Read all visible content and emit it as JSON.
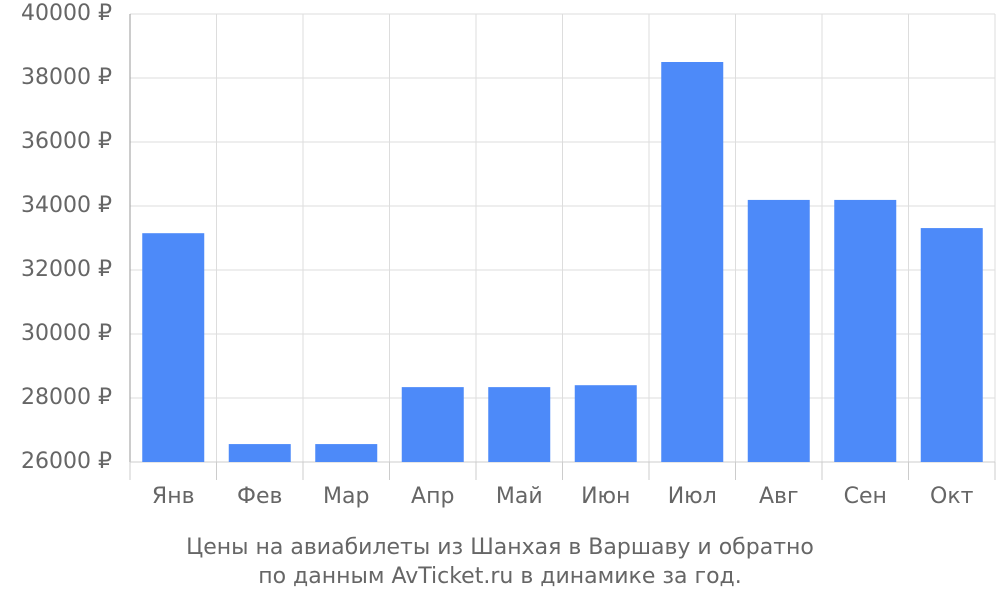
{
  "chart_data": {
    "type": "bar",
    "title": [
      "Цены на авиабилеты из Шанхая в Варшаву и обратно",
      "по данным AvTicket.ru в динамике за год."
    ],
    "categories": [
      "Янв",
      "Фев",
      "Мар",
      "Апр",
      "Май",
      "Июн",
      "Июл",
      "Авг",
      "Сен",
      "Окт"
    ],
    "values": [
      33150,
      26560,
      26560,
      28340,
      28340,
      28400,
      38500,
      34190,
      34190,
      33310
    ],
    "color": "#4d8af9",
    "ylim": [
      26000,
      40000
    ],
    "yticks": [
      {
        "value": 26000,
        "label": "26000 ₽"
      },
      {
        "value": 28000,
        "label": "28000 ₽"
      },
      {
        "value": 30000,
        "label": "30000 ₽"
      },
      {
        "value": 32000,
        "label": "32000 ₽"
      },
      {
        "value": 34000,
        "label": "34000 ₽"
      },
      {
        "value": 36000,
        "label": "36000 ₽"
      },
      {
        "value": 38000,
        "label": "38000 ₽"
      },
      {
        "value": 40000,
        "label": "40000 ₽"
      }
    ],
    "grid": true
  }
}
